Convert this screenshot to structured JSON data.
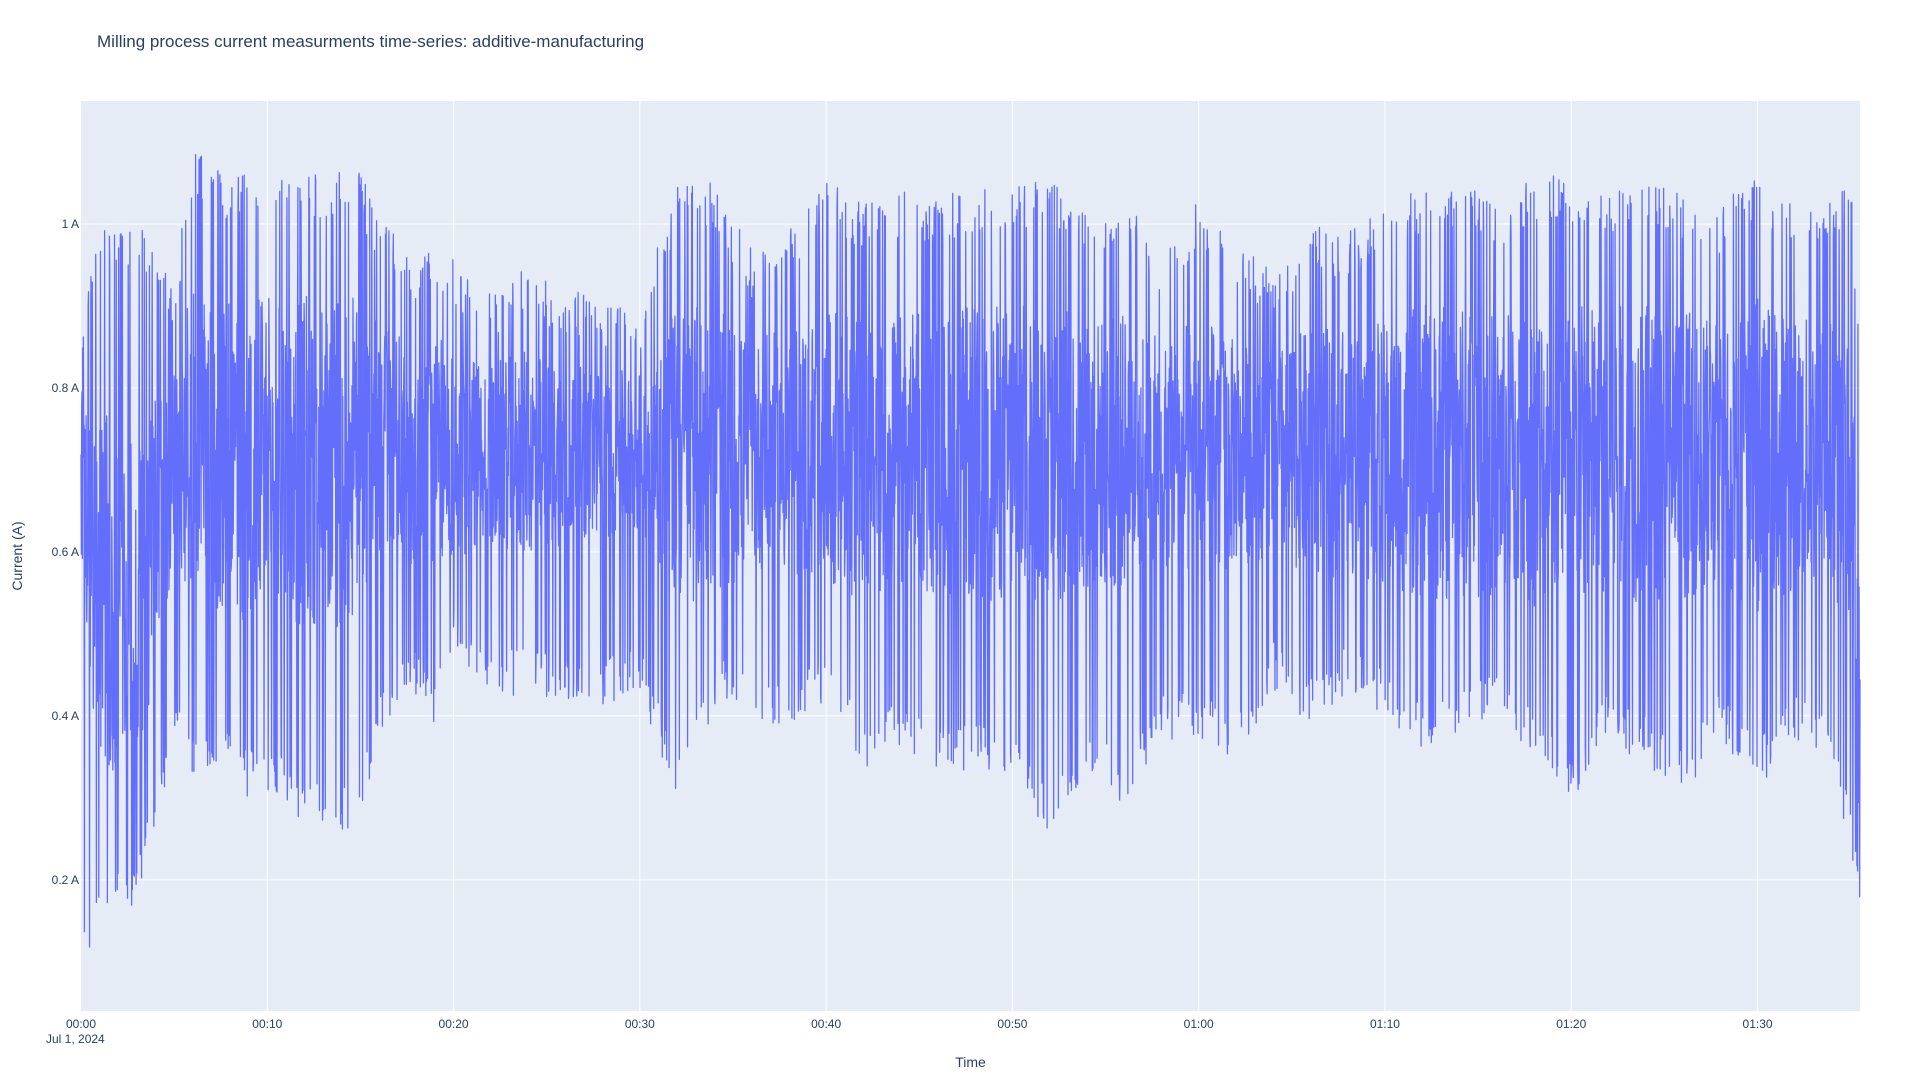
{
  "chart_data": {
    "type": "line",
    "title": "Milling process current measurments time-series: additive-manufacturing",
    "xlabel": "Time",
    "ylabel": "Current (A)",
    "x_start": "2024-07-01 00:00",
    "x_end": "2024-07-01 01:35:30",
    "xlim": [
      "2024-07-01 00:00",
      "2024-07-01 01:35:30"
    ],
    "ylim": [
      0.04,
      1.15
    ],
    "x_ticks": [
      {
        "t": "2024-07-01 00:00",
        "label": "00:00",
        "sublabel": "Jul 1, 2024"
      },
      {
        "t": "2024-07-01 00:10",
        "label": "00:10"
      },
      {
        "t": "2024-07-01 00:20",
        "label": "00:20"
      },
      {
        "t": "2024-07-01 00:30",
        "label": "00:30"
      },
      {
        "t": "2024-07-01 00:40",
        "label": "00:40"
      },
      {
        "t": "2024-07-01 00:50",
        "label": "00:50"
      },
      {
        "t": "2024-07-01 01:00",
        "label": "01:00"
      },
      {
        "t": "2024-07-01 01:10",
        "label": "01:10"
      },
      {
        "t": "2024-07-01 01:20",
        "label": "01:20"
      },
      {
        "t": "2024-07-01 01:30",
        "label": "01:30"
      }
    ],
    "y_ticks": [
      {
        "v": 0.2,
        "label": "0.2 A"
      },
      {
        "v": 0.4,
        "label": "0.4 A"
      },
      {
        "v": 0.6,
        "label": "0.6 A"
      },
      {
        "v": 0.8,
        "label": "0.8 A"
      },
      {
        "v": 1.0,
        "label": "1 A"
      }
    ],
    "grid": true,
    "legend": "none",
    "colors": {
      "line": "#636efa",
      "plot_bg": "#e5ecf6",
      "grid": "#ffffff",
      "text": "#2a3f5f"
    },
    "series": [
      {
        "x": [
          "00:00",
          "00:01",
          "00:02",
          "00:03",
          "00:04",
          "00:05",
          "00:06",
          "00:07",
          "00:08",
          "00:09",
          "00:10",
          "00:11",
          "00:12",
          "00:13",
          "00:14",
          "00:15",
          "00:16",
          "00:17",
          "00:18",
          "00:19",
          "00:20",
          "00:22",
          "00:24",
          "00:26",
          "00:28",
          "00:30",
          "00:32",
          "00:34",
          "00:36",
          "00:38",
          "00:40",
          "00:42",
          "00:44",
          "00:46",
          "00:48",
          "00:50",
          "00:52",
          "00:54",
          "00:56",
          "00:58",
          "01:00",
          "01:02",
          "01:04",
          "01:06",
          "01:08",
          "01:10",
          "01:12",
          "01:14",
          "01:16",
          "01:18",
          "01:20",
          "01:22",
          "01:24",
          "01:26",
          "01:28",
          "01:30",
          "01:32",
          "01:34",
          "01:35",
          "01:35:30"
        ],
        "min": [
          0.09,
          0.15,
          0.15,
          0.16,
          0.26,
          0.37,
          0.33,
          0.34,
          0.33,
          0.3,
          0.3,
          0.29,
          0.27,
          0.26,
          0.25,
          0.28,
          0.36,
          0.4,
          0.42,
          0.39,
          0.48,
          0.41,
          0.43,
          0.41,
          0.41,
          0.43,
          0.29,
          0.41,
          0.4,
          0.38,
          0.42,
          0.33,
          0.36,
          0.33,
          0.33,
          0.33,
          0.24,
          0.33,
          0.29,
          0.37,
          0.37,
          0.34,
          0.43,
          0.39,
          0.43,
          0.4,
          0.36,
          0.38,
          0.39,
          0.35,
          0.29,
          0.37,
          0.34,
          0.3,
          0.37,
          0.31,
          0.37,
          0.34,
          0.22,
          0.16
        ],
        "max": [
          0.88,
          0.99,
          1.0,
          1.0,
          0.99,
          0.93,
          1.09,
          1.09,
          1.05,
          1.08,
          1.08,
          1.05,
          1.09,
          1.05,
          1.08,
          1.07,
          1.0,
          0.99,
          0.96,
          0.98,
          0.96,
          0.92,
          0.95,
          0.92,
          0.91,
          0.9,
          1.05,
          1.05,
          0.97,
          1.0,
          1.05,
          1.03,
          1.04,
          1.03,
          1.05,
          1.05,
          1.06,
          1.02,
          1.03,
          0.97,
          1.03,
          0.97,
          0.95,
          1.0,
          0.99,
          1.02,
          1.05,
          1.05,
          1.03,
          1.06,
          1.06,
          1.05,
          1.05,
          1.04,
          1.02,
          1.07,
          1.02,
          1.03,
          1.05,
          0.86
        ],
        "center": [
          0.7,
          0.55,
          0.55,
          0.52,
          0.6,
          0.72,
          0.72,
          0.72,
          0.72,
          0.7,
          0.72,
          0.72,
          0.7,
          0.7,
          0.7,
          0.72,
          0.72,
          0.72,
          0.72,
          0.72,
          0.72,
          0.72,
          0.72,
          0.72,
          0.72,
          0.72,
          0.72,
          0.72,
          0.72,
          0.72,
          0.72,
          0.72,
          0.72,
          0.72,
          0.72,
          0.72,
          0.72,
          0.72,
          0.72,
          0.72,
          0.72,
          0.72,
          0.72,
          0.72,
          0.72,
          0.72,
          0.72,
          0.72,
          0.72,
          0.72,
          0.72,
          0.72,
          0.72,
          0.72,
          0.72,
          0.72,
          0.72,
          0.72,
          0.68,
          0.4
        ]
      }
    ]
  }
}
